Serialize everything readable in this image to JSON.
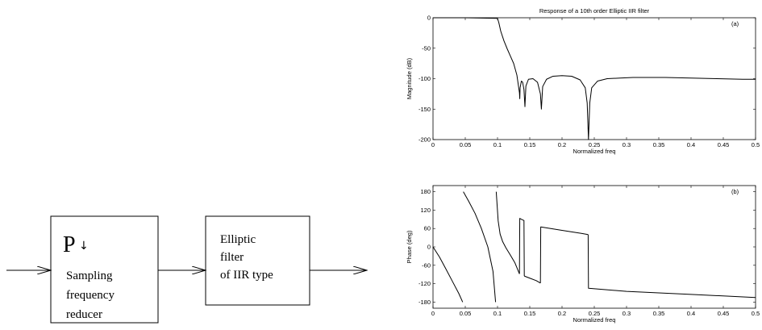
{
  "block_diagram": {
    "reducer": {
      "symbol": "P",
      "arrow": "↓",
      "lines": [
        "Sampling",
        "frequency",
        "reducer"
      ]
    },
    "filter": {
      "lines": [
        "Elliptic",
        "filter",
        "of IIR type"
      ]
    }
  },
  "chart_data": [
    {
      "type": "line",
      "title": "Response of a 10th order Elliptic IIR filter",
      "panel_label": "(a)",
      "xlabel": "Normalized freq",
      "ylabel": "Magnitude (dB)",
      "xlim": [
        0,
        0.5
      ],
      "ylim": [
        -200,
        0
      ],
      "xticks": [
        0,
        0.05,
        0.1,
        0.15,
        0.2,
        0.25,
        0.3,
        0.35,
        0.4,
        0.45,
        0.5
      ],
      "yticks": [
        0,
        -50,
        -100,
        -150,
        -200
      ],
      "x": [
        0,
        0.05,
        0.1,
        0.102,
        0.105,
        0.11,
        0.115,
        0.12,
        0.125,
        0.13,
        0.134,
        0.1345,
        0.135,
        0.137,
        0.139,
        0.141,
        0.1425,
        0.144,
        0.148,
        0.155,
        0.162,
        0.1665,
        0.168,
        0.17,
        0.176,
        0.186,
        0.2,
        0.215,
        0.228,
        0.236,
        0.239,
        0.241,
        0.243,
        0.246,
        0.255,
        0.27,
        0.29,
        0.31,
        0.33,
        0.36,
        0.4,
        0.44,
        0.48,
        0.5
      ],
      "y": [
        0,
        0,
        -1,
        -8,
        -22,
        -38,
        -51,
        -63,
        -75,
        -94,
        -123,
        -133,
        -115,
        -104,
        -106,
        -118,
        -146,
        -112,
        -101,
        -100,
        -106,
        -125,
        -150,
        -113,
        -101,
        -96,
        -95,
        -96,
        -102,
        -115,
        -140,
        -200,
        -140,
        -115,
        -104,
        -100,
        -99,
        -98,
        -98,
        -98,
        -99,
        -100,
        -101,
        -101
      ]
    },
    {
      "type": "line",
      "panel_label": "(b)",
      "xlabel": "Normalized freq",
      "ylabel": "Phase (deg)",
      "xlim": [
        0,
        0.5
      ],
      "ylim": [
        -200,
        200
      ],
      "xticks": [
        0,
        0.05,
        0.1,
        0.15,
        0.2,
        0.25,
        0.3,
        0.35,
        0.4,
        0.45,
        0.5
      ],
      "yticks": [
        180,
        120,
        60,
        0,
        -60,
        -120,
        -180
      ],
      "segments": [
        {
          "x": [
            0,
            0.01,
            0.02,
            0.03,
            0.04,
            0.046
          ],
          "y": [
            0,
            -33,
            -72,
            -112,
            -152,
            -180
          ]
        },
        {
          "x": [
            0.047,
            0.055,
            0.065,
            0.075,
            0.085,
            0.093,
            0.097
          ],
          "y": [
            180,
            150,
            110,
            60,
            0,
            -80,
            -180
          ]
        },
        {
          "x": [
            0.098,
            0.101,
            0.104,
            0.108,
            0.113,
            0.12,
            0.127,
            0.134
          ],
          "y": [
            180,
            85,
            42,
            17,
            -3,
            -27,
            -52,
            -88
          ]
        },
        {
          "x": [
            0.134,
            0.1345,
            0.137,
            0.141,
            0.1415
          ],
          "y": [
            -88,
            93,
            90,
            86,
            -95
          ]
        },
        {
          "x": [
            0.1415,
            0.15,
            0.16,
            0.1665
          ],
          "y": [
            -95,
            -102,
            -110,
            -118
          ]
        },
        {
          "x": [
            0.1665,
            0.167,
            0.2,
            0.23,
            0.2405
          ],
          "y": [
            -118,
            65,
            54,
            44,
            40
          ]
        },
        {
          "x": [
            0.2405,
            0.241,
            0.3,
            0.4,
            0.5
          ],
          "y": [
            40,
            -135,
            -145,
            -155,
            -165
          ]
        }
      ]
    }
  ]
}
